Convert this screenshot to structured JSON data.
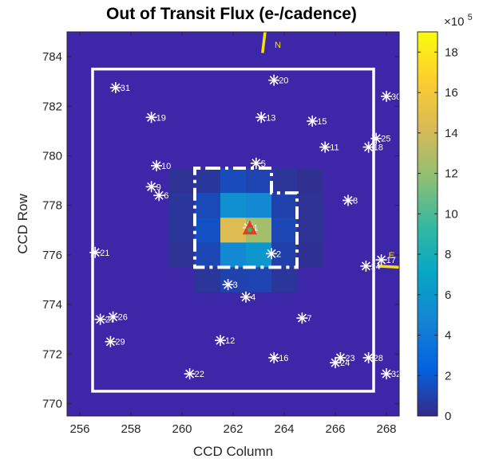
{
  "chart_data": {
    "type": "heatmap",
    "title": "Out of Transit Flux (e-/cadence)",
    "xlabel": "CCD Column",
    "ylabel": "CCD Row",
    "xlim": [
      255.5,
      268.5
    ],
    "ylim": [
      769.5,
      785.0
    ],
    "xticks": [
      256,
      258,
      260,
      262,
      264,
      266,
      268
    ],
    "yticks": [
      770,
      772,
      774,
      776,
      778,
      780,
      782,
      784
    ],
    "background_value": 0.0,
    "pixels": [
      {
        "col": 260,
        "row": 779,
        "value": 0.35
      },
      {
        "col": 261,
        "row": 779,
        "value": 0.55
      },
      {
        "col": 262,
        "row": 779,
        "value": 1.4
      },
      {
        "col": 263,
        "row": 779,
        "value": 1.1
      },
      {
        "col": 264,
        "row": 779,
        "value": 0.45
      },
      {
        "col": 265,
        "row": 779,
        "value": 0.25
      },
      {
        "col": 260,
        "row": 778,
        "value": 0.5
      },
      {
        "col": 261,
        "row": 778,
        "value": 1.3
      },
      {
        "col": 262,
        "row": 778,
        "value": 5.5
      },
      {
        "col": 263,
        "row": 778,
        "value": 5.0
      },
      {
        "col": 264,
        "row": 778,
        "value": 1.0
      },
      {
        "col": 265,
        "row": 778,
        "value": 0.35
      },
      {
        "col": 260,
        "row": 777,
        "value": 0.5
      },
      {
        "col": 261,
        "row": 777,
        "value": 1.6
      },
      {
        "col": 262,
        "row": 777,
        "value": 14.5
      },
      {
        "col": 263,
        "row": 777,
        "value": 12.5
      },
      {
        "col": 264,
        "row": 777,
        "value": 1.2
      },
      {
        "col": 265,
        "row": 777,
        "value": 0.35
      },
      {
        "col": 260,
        "row": 776,
        "value": 0.4
      },
      {
        "col": 261,
        "row": 776,
        "value": 1.2
      },
      {
        "col": 262,
        "row": 776,
        "value": 5.0
      },
      {
        "col": 263,
        "row": 776,
        "value": 6.0
      },
      {
        "col": 264,
        "row": 776,
        "value": 0.9
      },
      {
        "col": 265,
        "row": 776,
        "value": 0.3
      },
      {
        "col": 261,
        "row": 775,
        "value": 0.5
      },
      {
        "col": 262,
        "row": 775,
        "value": 1.0
      },
      {
        "col": 263,
        "row": 775,
        "value": 1.1
      },
      {
        "col": 264,
        "row": 775,
        "value": 0.5
      }
    ],
    "aperture_outline": [
      [
        261,
        779.5
      ],
      [
        263.5,
        779.5
      ],
      [
        263.5,
        778.5
      ],
      [
        264.5,
        778.5
      ],
      [
        264.5,
        775.5
      ],
      [
        260.5,
        775.5
      ],
      [
        260.5,
        779.5
      ],
      [
        261,
        779.5
      ]
    ],
    "outer_box": {
      "x": [
        256.5,
        267.5
      ],
      "y": [
        770.5,
        783.5
      ]
    },
    "target": {
      "x": 262.65,
      "y": 777.05
    },
    "stars": [
      {
        "id": "1",
        "x": 262.6,
        "y": 777.1
      },
      {
        "id": "2",
        "x": 263.5,
        "y": 776.05
      },
      {
        "id": "3",
        "x": 261.8,
        "y": 774.8
      },
      {
        "id": "4",
        "x": 262.5,
        "y": 774.3
      },
      {
        "id": "5",
        "x": 262.9,
        "y": 779.7
      },
      {
        "id": "6",
        "x": 259.1,
        "y": 778.4
      },
      {
        "id": "7",
        "x": 264.7,
        "y": 773.45
      },
      {
        "id": "8",
        "x": 266.5,
        "y": 778.2
      },
      {
        "id": "9",
        "x": 258.8,
        "y": 778.75
      },
      {
        "id": "10",
        "x": 259.0,
        "y": 779.6
      },
      {
        "id": "11",
        "x": 265.6,
        "y": 780.35
      },
      {
        "id": "12",
        "x": 261.5,
        "y": 772.55
      },
      {
        "id": "13",
        "x": 263.1,
        "y": 781.55
      },
      {
        "id": "14",
        "x": 267.2,
        "y": 775.55
      },
      {
        "id": "15",
        "x": 265.1,
        "y": 781.4
      },
      {
        "id": "16",
        "x": 263.6,
        "y": 771.85
      },
      {
        "id": "17",
        "x": 267.8,
        "y": 775.8
      },
      {
        "id": "18",
        "x": 267.3,
        "y": 780.35
      },
      {
        "id": "19",
        "x": 258.8,
        "y": 781.55
      },
      {
        "id": "20",
        "x": 263.6,
        "y": 783.05
      },
      {
        "id": "21",
        "x": 256.6,
        "y": 776.1
      },
      {
        "id": "22",
        "x": 260.3,
        "y": 771.2
      },
      {
        "id": "23",
        "x": 266.2,
        "y": 771.85
      },
      {
        "id": "24",
        "x": 266.0,
        "y": 771.65
      },
      {
        "id": "25",
        "x": 267.6,
        "y": 780.7
      },
      {
        "id": "26",
        "x": 257.3,
        "y": 773.5
      },
      {
        "id": "27",
        "x": 256.8,
        "y": 773.4
      },
      {
        "id": "28",
        "x": 267.3,
        "y": 771.85
      },
      {
        "id": "29",
        "x": 257.2,
        "y": 772.5
      },
      {
        "id": "30",
        "x": 268.0,
        "y": 782.4
      },
      {
        "id": "31",
        "x": 257.4,
        "y": 782.75
      },
      {
        "id": "32",
        "x": 268.0,
        "y": 771.2
      }
    ],
    "compass": [
      {
        "label": "N",
        "x1": 263.15,
        "y1": 784.15,
        "x2": 263.25,
        "y2": 785.0
      },
      {
        "label": "E",
        "x1": 267.65,
        "y1": 775.55,
        "x2": 268.5,
        "y2": 775.5
      }
    ],
    "colorbar": {
      "min": 0,
      "max": 19,
      "ticks": [
        0,
        2,
        4,
        6,
        8,
        10,
        12,
        14,
        16,
        18
      ],
      "multiplier_base": "×10",
      "multiplier_exp": "5"
    },
    "colors": {
      "background": "#3e26a8",
      "outline": "#ffffff",
      "target_marker": "#e83a26",
      "target_center": "#2bbf63",
      "compass": "#f5e400",
      "label": "#ffffff"
    }
  }
}
